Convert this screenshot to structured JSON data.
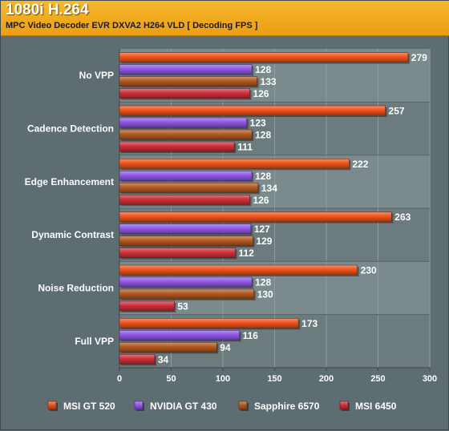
{
  "header": {
    "title": "1080i H.264",
    "subtitle": "MPC Video Decoder EVR DXVA2 H264 VLD [ Decoding FPS ]"
  },
  "colors": {
    "accent": "#f0a818",
    "plot_band_light": "#7b8a8c",
    "plot_band_dark": "#6c7b7d"
  },
  "chart_data": {
    "type": "bar",
    "orientation": "horizontal",
    "categories": [
      "No VPP",
      "Cadence Detection",
      "Edge Enhancement",
      "Dynamic Contrast",
      "Noise Reduction",
      "Full VPP"
    ],
    "series": [
      {
        "name": "MSI GT 520",
        "color": "#f0541c",
        "values": [
          279,
          257,
          222,
          263,
          230,
          173
        ]
      },
      {
        "name": "NVIDIA GT 430",
        "color": "#9258e8",
        "values": [
          128,
          123,
          128,
          127,
          128,
          116
        ]
      },
      {
        "name": "Sapphire 6570",
        "color": "#b45a22",
        "values": [
          133,
          128,
          134,
          129,
          130,
          94
        ]
      },
      {
        "name": "MSI 6450",
        "color": "#d0303a",
        "values": [
          126,
          111,
          126,
          112,
          53,
          34
        ]
      }
    ],
    "xlim": [
      0,
      300
    ],
    "xticks": [
      0,
      50,
      100,
      150,
      200,
      250,
      300
    ],
    "grid": true,
    "legend": "bottom"
  }
}
